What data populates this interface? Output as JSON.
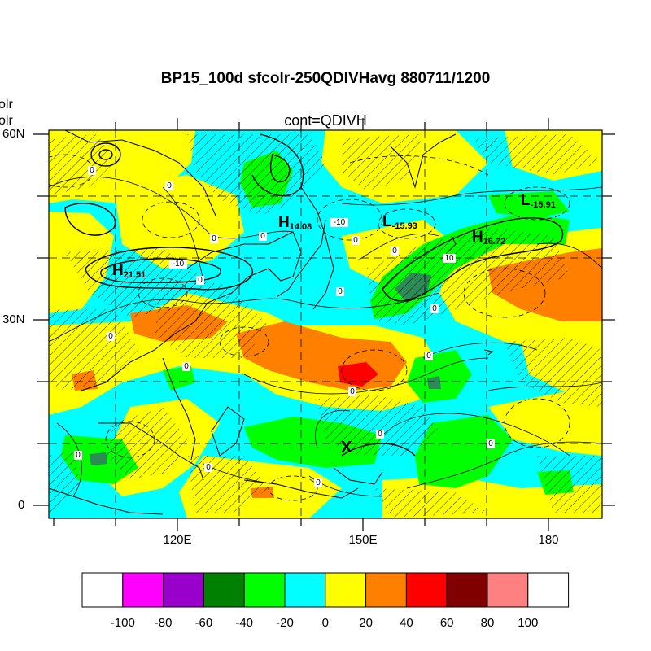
{
  "title": "BP15_100d sfcolr-250QDIVHavg  880711/1200",
  "subtitle": "cont=QDIVH",
  "left_labels": [
    "olr",
    "olr"
  ],
  "lat_labels": [
    "60N",
    "30N",
    "0"
  ],
  "lon_labels": [
    "120E",
    "150E",
    "180"
  ],
  "colorbar": {
    "colors": [
      "#ffffff",
      "#ff00ff",
      "#9900cc",
      "#008000",
      "#00ff00",
      "#00ffff",
      "#ffff00",
      "#ff8000",
      "#ff0000",
      "#800000",
      "#ff8080",
      "#ffffff"
    ],
    "labels": [
      "-100",
      "-80",
      "-60",
      "-40",
      "-20",
      "0",
      "20",
      "40",
      "60",
      "80",
      "100"
    ]
  },
  "pressure_centers": [
    {
      "letter": "H",
      "value": "21.51"
    },
    {
      "letter": "H",
      "value": "14.08"
    },
    {
      "letter": "L",
      "value": "-15.93"
    },
    {
      "letter": "H",
      "value": "16.72"
    },
    {
      "letter": "L",
      "value": "-15.91"
    }
  ],
  "contour_labels": [
    "0",
    "0",
    "0",
    "-10",
    "0",
    "0",
    "-10",
    "0",
    "0",
    "10",
    "0",
    "0",
    "0",
    "0",
    "0",
    "0",
    "0",
    "0",
    "0",
    "0",
    "0"
  ],
  "marker": "X"
}
